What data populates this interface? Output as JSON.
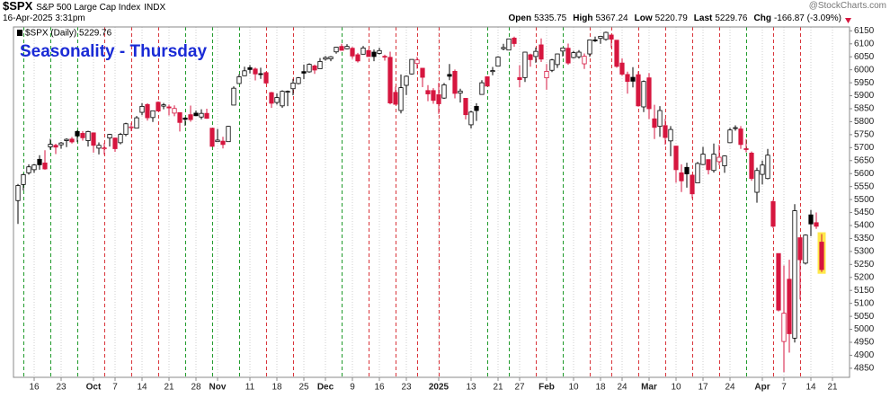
{
  "header": {
    "symbol": "$SPX",
    "name": "S&P 500 Large Cap Index",
    "exchange": "INDX",
    "timestamp": "16-Apr-2025 3:31pm",
    "quote": [
      {
        "label": "Open",
        "value": "5335.75"
      },
      {
        "label": "High",
        "value": "5367.24"
      },
      {
        "label": "Low",
        "value": "5220.79"
      },
      {
        "label": "Last",
        "value": "5229.76"
      },
      {
        "label": "Chg",
        "value": "-166.87 (-3.09%)"
      }
    ],
    "source": "@StockCharts.com"
  },
  "chart_data": {
    "type": "candlestick",
    "title": "Seasonality - Thursday",
    "legend": "$SPX (Daily) 5229.76",
    "up_color": "#000000",
    "down_color": "#d6163f",
    "highlight_color": "#ffe94a",
    "categories": [
      null,
      null,
      null,
      "16",
      null,
      null,
      null,
      null,
      "23",
      null,
      null,
      null,
      null,
      null,
      "Oct",
      null,
      null,
      null,
      "7",
      null,
      null,
      null,
      null,
      "14",
      null,
      null,
      null,
      null,
      "21",
      null,
      null,
      null,
      null,
      "28",
      null,
      null,
      null,
      "Nov",
      null,
      null,
      null,
      null,
      null,
      "11",
      null,
      null,
      null,
      null,
      "18",
      null,
      null,
      null,
      null,
      "25",
      null,
      null,
      null,
      "Dec",
      null,
      null,
      null,
      null,
      "9",
      null,
      null,
      null,
      null,
      "16",
      null,
      null,
      null,
      null,
      "23",
      null,
      null,
      null,
      null,
      null,
      "2025",
      null,
      null,
      null,
      null,
      null,
      "13",
      null,
      null,
      null,
      null,
      "21",
      null,
      null,
      null,
      "27",
      null,
      null,
      null,
      null,
      "Feb",
      null,
      null,
      null,
      null,
      "10",
      null,
      null,
      null,
      null,
      "18",
      null,
      null,
      null,
      "24",
      null,
      null,
      null,
      null,
      "Mar",
      null,
      null,
      null,
      null,
      "10",
      null,
      null,
      null,
      null,
      "17",
      null,
      null,
      null,
      null,
      "24",
      null,
      null,
      null,
      null,
      null,
      "Apr",
      null,
      null,
      null,
      "7",
      null,
      null,
      null,
      null,
      "14",
      null,
      null,
      null,
      "21"
    ],
    "series": [
      {
        "open": [
          5496,
          5558,
          5603,
          5615,
          5655,
          5641,
          5703,
          5709,
          5711,
          5727,
          5733,
          5762,
          5755,
          5727,
          5757,
          5698,
          5698,
          5737,
          5737,
          5719,
          5751,
          5778,
          5775,
          5836,
          5866,
          5816,
          5875,
          5860,
          5857,
          5833,
          5835,
          5814,
          5827,
          5833,
          5818,
          5832,
          5775,
          5723,
          5725,
          5723,
          5864,
          5947,
          5977,
          6008,
          6003,
          5985,
          5989,
          5912,
          5874,
          5861,
          5914,
          5927,
          5947,
          5993,
          5992,
          6015,
          6004,
          6041,
          6042,
          6069,
          6090,
          6081,
          6083,
          6058,
          6060,
          6074,
          6068,
          6063,
          6052,
          6048,
          5913,
          5843,
          5940,
          5984,
          6024,
          6006,
          5920,
          5920,
          5904,
          5891,
          5982,
          5994,
          5910,
          5890,
          5788,
          5859,
          5905,
          5973,
          5993,
          6014,
          6081,
          6076,
          6122,
          5970,
          5970,
          6058,
          6051,
          6096,
          5969,
          5998,
          6020,
          6072,
          6083,
          6047,
          6050,
          6023,
          6061,
          6115,
          6121,
          6117,
          6134,
          6114,
          6026,
          5982,
          5971,
          5981,
          5857,
          5969,
          5811,
          5782,
          5785,
          5726,
          5706,
          5603,
          5624,
          5594,
          5564,
          5635,
          5654,
          5612,
          5646,
          5630,
          5719,
          5775,
          5772,
          5696,
          5679,
          5528,
          5597,
          5581,
          5492,
          5292,
          4953,
          5193,
          4966,
          5353,
          5255,
          5441,
          5411,
          5336,
          null,
          null
        ],
        "high": [
          5560,
          5600,
          5636,
          5637,
          5671,
          5690,
          5734,
          5715,
          5722,
          5736,
          5741,
          5767,
          5764,
          5765,
          5758,
          5720,
          5718,
          5753,
          5739,
          5757,
          5796,
          5795,
          5822,
          5871,
          5871,
          5843,
          5878,
          5872,
          5866,
          5863,
          5835,
          5817,
          5862,
          5843,
          5848,
          5850,
          5775,
          5772,
          5742,
          5784,
          5936,
          5983,
          6012,
          6018,
          6009,
          6008,
          5993,
          5915,
          5909,
          5921,
          5920,
          5965,
          5972,
          6020,
          6025,
          6020,
          6045,
          6053,
          6053,
          6089,
          6100,
          6099,
          6088,
          6065,
          6092,
          6079,
          6078,
          6085,
          6058,
          6070,
          5935,
          5982,
          5978,
          6040,
          6050,
          6007,
          5941,
          5929,
          5950,
          5949,
          6022,
          6001,
          5927,
          5890,
          5842,
          5871,
          5960,
          5975,
          6011,
          6052,
          6100,
          6119,
          6128,
          6017,
          6069,
          6062,
          6086,
          6121,
          6022,
          6042,
          6062,
          6084,
          6101,
          6073,
          6076,
          6063,
          6116,
          6128,
          6129,
          6147,
          6134,
          6115,
          6044,
          5993,
          6010,
          5994,
          5959,
          5987,
          5865,
          5860,
          5812,
          5783,
          5706,
          5636,
          5642,
          5597,
          5645,
          5703,
          5654,
          5716,
          5711,
          5670,
          5776,
          5786,
          5783,
          5733,
          5685,
          5623,
          5650,
          5695,
          5499,
          5292,
          5246,
          5268,
          5482,
          5353,
          5366,
          5460,
          5450,
          5367,
          null,
          null
        ],
        "low": [
          5406,
          5535,
          5596,
          5603,
          5615,
          5615,
          5692,
          5675,
          5696,
          5702,
          5716,
          5721,
          5727,
          5704,
          5681,
          5674,
          5673,
          5704,
          5684,
          5713,
          5744,
          5764,
          5775,
          5825,
          5804,
          5799,
          5840,
          5848,
          5824,
          5821,
          5762,
          5784,
          5800,
          5822,
          5809,
          5811,
          5703,
          5723,
          5697,
          5723,
          5864,
          5947,
          5976,
          5986,
          5959,
          5965,
          5945,
          5853,
          5866,
          5853,
          5860,
          5902,
          5944,
          5964,
          5989,
          5984,
          6004,
          6035,
          6033,
          6062,
          6074,
          6079,
          6042,
          6028,
          6060,
          6050,
          6033,
          6059,
          6035,
          5867,
          5866,
          5832,
          5903,
          5982,
          6004,
          5933,
          5879,
          5869,
          5830,
          5888,
          5960,
          5890,
          5874,
          5809,
          5774,
          5803,
          5905,
          5937,
          5979,
          6014,
          6075,
          6075,
          6089,
          5932,
          5953,
          6012,
          6027,
          6030,
          5923,
          5991,
          6007,
          6051,
          6019,
          6044,
          6043,
          6003,
          6050,
          6107,
          6100,
          6112,
          6084,
          6008,
          5977,
          5908,
          5932,
          5858,
          5837,
          5810,
          5733,
          5742,
          5711,
          5667,
          5565,
          5529,
          5546,
          5504,
          5564,
          5633,
          5597,
          5604,
          5632,
          5603,
          5719,
          5765,
          5695,
          5682,
          5572,
          5488,
          5558,
          5578,
          5390,
          5069,
          4835,
          4910,
          4949,
          5115,
          5250,
          5359,
          5387,
          5221,
          null,
          null
        ],
        "close": [
          5554,
          5596,
          5626,
          5633,
          5634,
          5618,
          5713,
          5702,
          5718,
          5732,
          5722,
          5745,
          5738,
          5762,
          5709,
          5709,
          5699,
          5751,
          5696,
          5751,
          5792,
          5780,
          5815,
          5859,
          5815,
          5842,
          5841,
          5865,
          5853,
          5851,
          5797,
          5809,
          5808,
          5823,
          5832,
          5813,
          5705,
          5729,
          5712,
          5782,
          5929,
          5973,
          5996,
          6001,
          5984,
          5985,
          5949,
          5871,
          5893,
          5917,
          5917,
          5949,
          5969,
          5987,
          6021,
          5999,
          6032,
          6047,
          6050,
          6087,
          6075,
          6090,
          6053,
          6034,
          6084,
          6051,
          6051,
          6074,
          6051,
          5872,
          5867,
          5931,
          5975,
          6040,
          6038,
          5971,
          5907,
          5882,
          5869,
          5942,
          5975,
          5909,
          5918,
          5827,
          5837,
          5843,
          5950,
          5937,
          5997,
          6049,
          6086,
          6119,
          6101,
          5962,
          6068,
          6039,
          6071,
          6041,
          5994,
          6038,
          6061,
          6084,
          6026,
          6066,
          6068,
          6052,
          6115,
          6115,
          6129,
          6144,
          6118,
          6013,
          5983,
          5955,
          5956,
          5861,
          5955,
          5850,
          5778,
          5843,
          5739,
          5770,
          5615,
          5572,
          5599,
          5522,
          5639,
          5675,
          5615,
          5675,
          5663,
          5668,
          5768,
          5777,
          5712,
          5693,
          5581,
          5612,
          5633,
          5671,
          5397,
          5074,
          5062,
          4983,
          5457,
          5268,
          5363,
          5406,
          5397,
          5230,
          null,
          null
        ]
      }
    ],
    "ylim": [
      4815,
      6165
    ],
    "yticks": [
      4850,
      4900,
      4950,
      5000,
      5050,
      5100,
      5150,
      5200,
      5250,
      5300,
      5350,
      5400,
      5450,
      5500,
      5550,
      5600,
      5650,
      5700,
      5750,
      5800,
      5850,
      5900,
      5950,
      6000,
      6050,
      6100,
      6150
    ],
    "thursday_lines": [
      {
        "index": 1,
        "color": "#1f9a2a"
      },
      {
        "index": 6,
        "color": "#1f9a2a"
      },
      {
        "index": 11,
        "color": "#1f9a2a"
      },
      {
        "index": 16,
        "color": "#d9343a"
      },
      {
        "index": 21,
        "color": "#d9343a"
      },
      {
        "index": 26,
        "color": "#d9343a"
      },
      {
        "index": 31,
        "color": "#1f9a2a"
      },
      {
        "index": 36,
        "color": "#1f9a2a"
      },
      {
        "index": 41,
        "color": "#1f9a2a"
      },
      {
        "index": 46,
        "color": "#d9343a"
      },
      {
        "index": 51,
        "color": "#d9343a"
      },
      {
        "index": 60,
        "color": "#1f9a2a"
      },
      {
        "index": 65,
        "color": "#d9343a"
      },
      {
        "index": 70,
        "color": "#d9343a"
      },
      {
        "index": 74,
        "color": "#d9343a"
      },
      {
        "index": 78,
        "color": "#d9343a"
      },
      {
        "index": 87,
        "color": "#1f9a2a"
      },
      {
        "index": 91,
        "color": "#1f9a2a"
      },
      {
        "index": 96,
        "color": "#d9343a"
      },
      {
        "index": 101,
        "color": "#1f9a2a"
      },
      {
        "index": 106,
        "color": "#d9343a"
      },
      {
        "index": 110,
        "color": "#d9343a"
      },
      {
        "index": 115,
        "color": "#d9343a"
      },
      {
        "index": 120,
        "color": "#d9343a"
      },
      {
        "index": 125,
        "color": "#d9343a"
      },
      {
        "index": 130,
        "color": "#d9343a"
      },
      {
        "index": 135,
        "color": "#1f9a2a"
      },
      {
        "index": 140,
        "color": "#d9343a"
      },
      {
        "index": 145,
        "color": "#d9343a"
      }
    ]
  }
}
